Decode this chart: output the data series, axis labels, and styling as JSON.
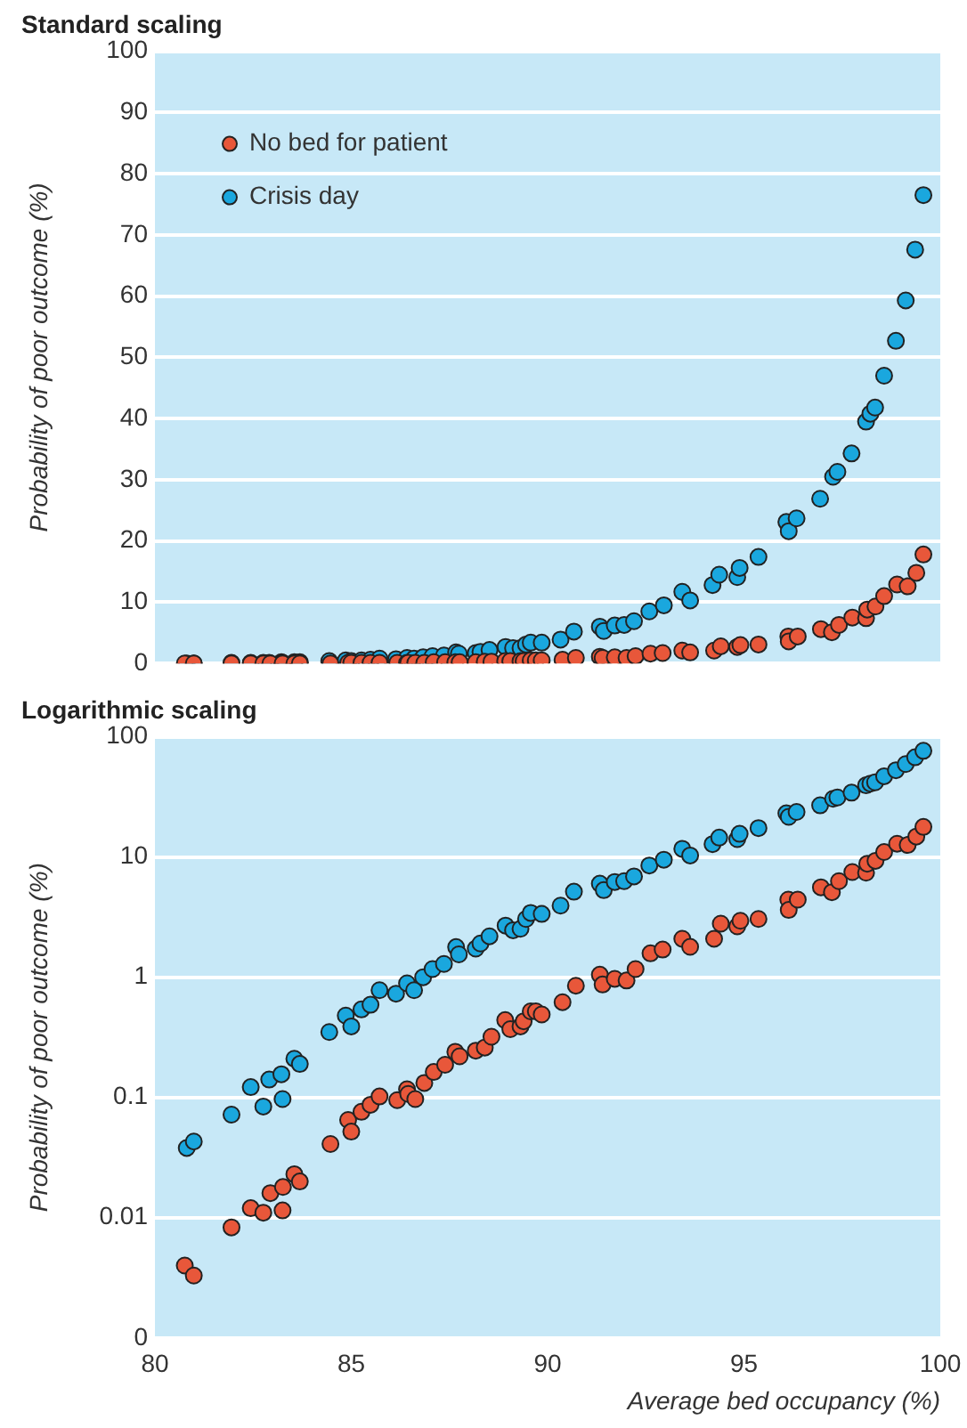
{
  "chart_data": [
    {
      "type": "scatter",
      "title": "Standard scaling",
      "ylabel": "Probability of poor outcome (%)",
      "xlim": [
        80,
        100
      ],
      "xticks": [
        80,
        85,
        90,
        95,
        100
      ],
      "ylim": [
        0,
        100
      ],
      "yticks": [
        0,
        10,
        20,
        30,
        40,
        50,
        60,
        70,
        80,
        90,
        100
      ],
      "tick_labels": "y",
      "grid": "y",
      "legend": "top left",
      "marker": "circle",
      "series": [
        {
          "name": "No bed for patient",
          "color": "#e8573a",
          "x": [
            80.76,
            80.99,
            81.95,
            82.44,
            82.76,
            82.94,
            83.26,
            83.25,
            83.55,
            83.69,
            84.47,
            84.92,
            85.0,
            85.26,
            85.49,
            85.72,
            86.17,
            86.42,
            86.45,
            86.63,
            86.86,
            87.1,
            87.39,
            87.65,
            87.76,
            88.17,
            88.4,
            88.57,
            88.92,
            89.05,
            89.31,
            89.39,
            89.57,
            89.7,
            89.85,
            90.38,
            90.72,
            91.33,
            91.4,
            91.71,
            92.01,
            92.24,
            92.62,
            92.93,
            93.43,
            93.63,
            94.24,
            94.41,
            94.83,
            94.91,
            95.37,
            96.13,
            96.14,
            96.37,
            96.96,
            97.24,
            97.42,
            97.76,
            98.11,
            98.14,
            98.35,
            98.57,
            98.9,
            99.17,
            99.39,
            99.57
          ],
          "values": [
            0,
            0,
            0,
            0,
            0,
            0,
            0,
            0,
            0,
            0,
            0,
            0.1,
            0.1,
            0.1,
            0.1,
            0.1,
            0.1,
            0.1,
            0.1,
            0.1,
            0.1,
            0.2,
            0.2,
            0.2,
            0.2,
            0.2,
            0.3,
            0.3,
            0.4,
            0.4,
            0.4,
            0.4,
            0.5,
            0.5,
            0.5,
            0.6,
            0.9,
            1.1,
            0.9,
            1.0,
            0.9,
            1.2,
            1.6,
            1.7,
            2.1,
            1.8,
            2.1,
            2.8,
            2.7,
            3.0,
            3.1,
            4.4,
            3.6,
            4.4,
            5.6,
            5.1,
            6.3,
            7.5,
            7.4,
            8.8,
            9.3,
            11.0,
            12.9,
            12.6,
            14.8,
            17.8
          ]
        },
        {
          "name": "Crisis day",
          "color": "#1aa7de",
          "x": [
            80.81,
            80.99,
            81.95,
            82.44,
            82.76,
            82.91,
            83.22,
            83.25,
            83.55,
            83.69,
            84.44,
            84.86,
            85.0,
            85.26,
            85.49,
            85.72,
            86.14,
            86.42,
            86.6,
            86.83,
            87.07,
            87.36,
            87.67,
            87.74,
            88.17,
            88.29,
            88.52,
            88.93,
            89.12,
            89.31,
            89.45,
            89.57,
            89.85,
            90.33,
            90.67,
            91.33,
            91.43,
            91.71,
            91.95,
            92.2,
            92.59,
            92.96,
            93.43,
            93.63,
            94.2,
            94.37,
            94.83,
            94.89,
            95.37,
            96.08,
            96.14,
            96.34,
            96.94,
            97.27,
            97.38,
            97.74,
            98.11,
            98.22,
            98.34,
            98.57,
            98.87,
            99.12,
            99.36,
            99.57
          ],
          "values": [
            0,
            0,
            0.1,
            0.1,
            0.1,
            0.1,
            0.2,
            0.1,
            0.2,
            0.2,
            0.4,
            0.5,
            0.4,
            0.5,
            0.6,
            0.8,
            0.7,
            0.9,
            0.8,
            1.0,
            1.2,
            1.3,
            1.8,
            1.6,
            1.7,
            1.9,
            2.2,
            2.7,
            2.5,
            2.5,
            3.1,
            3.4,
            3.4,
            3.9,
            5.2,
            6.0,
            5.3,
            6.2,
            6.3,
            6.9,
            8.5,
            9.5,
            11.7,
            10.3,
            12.8,
            14.5,
            14.1,
            15.6,
            17.4,
            23.1,
            21.6,
            23.7,
            26.9,
            30.5,
            31.3,
            34.3,
            39.5,
            40.8,
            41.8,
            47,
            52.7,
            59.3,
            67.6,
            76.5
          ]
        }
      ]
    },
    {
      "type": "scatter",
      "title": "Logarithmic scaling",
      "ylabel": "Probability of poor outcome (%)",
      "xlabel": "Average bed occupancy (%)",
      "xlim": [
        80,
        100
      ],
      "xticks": [
        80,
        85,
        90,
        95,
        100
      ],
      "ylim": [
        0.001,
        100
      ],
      "yticks": [
        {
          "value": 0.001,
          "label": "0"
        },
        0.01,
        0.1,
        1,
        10,
        100
      ],
      "log": "y",
      "grid": "y",
      "marker": "circle",
      "series": [
        {
          "color": "#e8573a",
          "x": [
            80.76,
            80.99,
            81.95,
            82.44,
            82.76,
            82.94,
            83.26,
            83.25,
            83.55,
            83.69,
            84.47,
            84.92,
            85.0,
            85.26,
            85.49,
            85.72,
            86.17,
            86.42,
            86.45,
            86.63,
            86.86,
            87.1,
            87.39,
            87.65,
            87.76,
            88.17,
            88.4,
            88.57,
            88.92,
            89.05,
            89.31,
            89.39,
            89.57,
            89.7,
            89.85,
            90.38,
            90.72,
            91.33,
            91.4,
            91.71,
            92.01,
            92.24,
            92.62,
            92.93,
            93.43,
            93.63,
            94.24,
            94.41,
            94.83,
            94.91,
            95.37,
            96.13,
            96.14,
            96.37,
            96.96,
            97.24,
            97.42,
            97.76,
            98.11,
            98.14,
            98.35,
            98.57,
            98.9,
            99.17,
            99.39,
            99.57
          ],
          "values": [
            0.004,
            0.0033,
            0.0083,
            0.012,
            0.011,
            0.016,
            0.018,
            0.0115,
            0.023,
            0.02,
            0.041,
            0.065,
            0.052,
            0.076,
            0.087,
            0.102,
            0.095,
            0.117,
            0.107,
            0.097,
            0.132,
            0.163,
            0.187,
            0.24,
            0.22,
            0.245,
            0.26,
            0.32,
            0.44,
            0.37,
            0.39,
            0.43,
            0.52,
            0.52,
            0.49,
            0.62,
            0.85,
            1.05,
            0.87,
            0.97,
            0.94,
            1.17,
            1.58,
            1.7,
            2.09,
            1.79,
            2.09,
            2.79,
            2.65,
            2.95,
            3.05,
            4.42,
            3.63,
            4.42,
            5.6,
            5.1,
            6.3,
            7.5,
            7.4,
            8.8,
            9.3,
            11.0,
            12.9,
            12.6,
            14.8,
            17.8
          ]
        },
        {
          "color": "#1aa7de",
          "x": [
            80.81,
            80.99,
            81.95,
            82.44,
            82.76,
            82.91,
            83.22,
            83.25,
            83.55,
            83.69,
            84.44,
            84.86,
            85.0,
            85.26,
            85.49,
            85.72,
            86.14,
            86.42,
            86.6,
            86.83,
            87.07,
            87.36,
            87.67,
            87.74,
            88.17,
            88.29,
            88.52,
            88.93,
            89.12,
            89.31,
            89.45,
            89.57,
            89.85,
            90.33,
            90.67,
            91.33,
            91.43,
            91.71,
            91.95,
            92.2,
            92.59,
            92.96,
            93.43,
            93.63,
            94.2,
            94.37,
            94.83,
            94.89,
            95.37,
            96.08,
            96.14,
            96.34,
            96.94,
            97.27,
            97.38,
            97.74,
            98.11,
            98.22,
            98.34,
            98.57,
            98.87,
            99.12,
            99.36,
            99.57
          ],
          "values": [
            0.038,
            0.043,
            0.072,
            0.122,
            0.084,
            0.141,
            0.156,
            0.097,
            0.21,
            0.19,
            0.35,
            0.48,
            0.39,
            0.54,
            0.59,
            0.78,
            0.73,
            0.89,
            0.78,
            1.0,
            1.17,
            1.29,
            1.78,
            1.55,
            1.73,
            1.91,
            2.19,
            2.69,
            2.46,
            2.53,
            3.05,
            3.43,
            3.36,
            3.94,
            5.15,
            6.0,
            5.3,
            6.2,
            6.3,
            6.9,
            8.5,
            9.5,
            11.7,
            10.3,
            12.8,
            14.5,
            14.1,
            15.6,
            17.4,
            23.1,
            21.6,
            23.7,
            26.9,
            30.5,
            31.3,
            34.3,
            39.5,
            40.8,
            41.8,
            47,
            52.7,
            59.3,
            67.6,
            76.5
          ]
        }
      ]
    }
  ]
}
